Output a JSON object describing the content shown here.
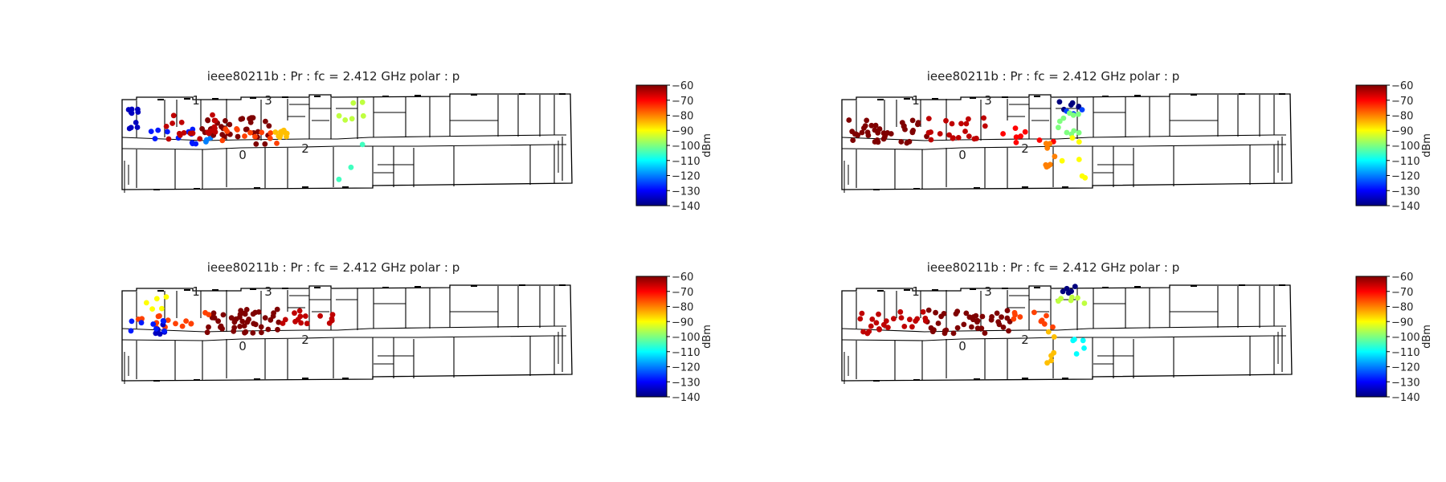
{
  "figure": {
    "colors": {
      "background": "#ffffff",
      "walls": "#000000",
      "text": "#222222",
      "colormap": [
        "#00007f",
        "#0000ff",
        "#007fff",
        "#00ffff",
        "#7fff7f",
        "#ffff00",
        "#ff7f00",
        "#ff0000",
        "#7f0000"
      ]
    }
  },
  "chart_data": [
    {
      "type": "scatter",
      "title": "ieee80211b : Pr :  fc = 2.412 GHz polar : p",
      "colorbar": {
        "label": "dBm",
        "ticks": [
          -60,
          -70,
          -80,
          -90,
          -100,
          -110,
          -120,
          -130,
          -140
        ],
        "range": [
          -140,
          -60
        ]
      },
      "access_points": [
        "0",
        "1",
        "2",
        "3"
      ],
      "clusters": [
        {
          "level": -135,
          "count": 10
        },
        {
          "level": -128,
          "count": 12
        },
        {
          "level": -120,
          "count": 3
        },
        {
          "level": -60,
          "count": 35
        },
        {
          "level": -65,
          "count": 20
        },
        {
          "level": -75,
          "count": 12
        },
        {
          "level": -85,
          "count": 10
        },
        {
          "level": -95,
          "count": 6
        },
        {
          "level": -105,
          "count": 3
        }
      ]
    },
    {
      "type": "scatter",
      "title": "ieee80211b : Pr :  fc = 2.412 GHz polar : p",
      "colorbar": {
        "label": "dBm",
        "ticks": [
          -60,
          -70,
          -80,
          -90,
          -100,
          -110,
          -120,
          -130,
          -140
        ],
        "range": [
          -140,
          -60
        ]
      },
      "access_points": [
        "0",
        "1",
        "2",
        "3"
      ],
      "clusters": [
        {
          "level": -60,
          "count": 40
        },
        {
          "level": -65,
          "count": 20
        },
        {
          "level": -70,
          "count": 8
        },
        {
          "level": -140,
          "count": 6
        },
        {
          "level": -125,
          "count": 3
        },
        {
          "level": -100,
          "count": 10
        },
        {
          "level": -90,
          "count": 6
        },
        {
          "level": -80,
          "count": 8
        }
      ]
    },
    {
      "type": "scatter",
      "title": "ieee80211b : Pr :  fc = 2.412 GHz polar : p",
      "colorbar": {
        "label": "dBm",
        "ticks": [
          -60,
          -70,
          -80,
          -90,
          -100,
          -110,
          -120,
          -130,
          -140
        ],
        "range": [
          -140,
          -60
        ]
      },
      "access_points": [
        "0",
        "1",
        "2",
        "3"
      ],
      "clusters": [
        {
          "level": -60,
          "count": 45
        },
        {
          "level": -65,
          "count": 15
        },
        {
          "level": -75,
          "count": 15
        },
        {
          "level": -90,
          "count": 5
        },
        {
          "level": -135,
          "count": 5
        },
        {
          "level": -128,
          "count": 8
        }
      ]
    },
    {
      "type": "scatter",
      "title": "ieee80211b : Pr :  fc = 2.412 GHz polar : p",
      "colorbar": {
        "label": "dBm",
        "ticks": [
          -60,
          -70,
          -80,
          -90,
          -100,
          -110,
          -120,
          -130,
          -140
        ],
        "range": [
          -140,
          -60
        ]
      },
      "access_points": [
        "0",
        "1",
        "2",
        "3"
      ],
      "clusters": [
        {
          "level": -60,
          "count": 40
        },
        {
          "level": -65,
          "count": 25
        },
        {
          "level": -75,
          "count": 10
        },
        {
          "level": -95,
          "count": 6
        },
        {
          "level": -140,
          "count": 5
        },
        {
          "level": -110,
          "count": 5
        },
        {
          "level": -85,
          "count": 6
        }
      ]
    }
  ]
}
